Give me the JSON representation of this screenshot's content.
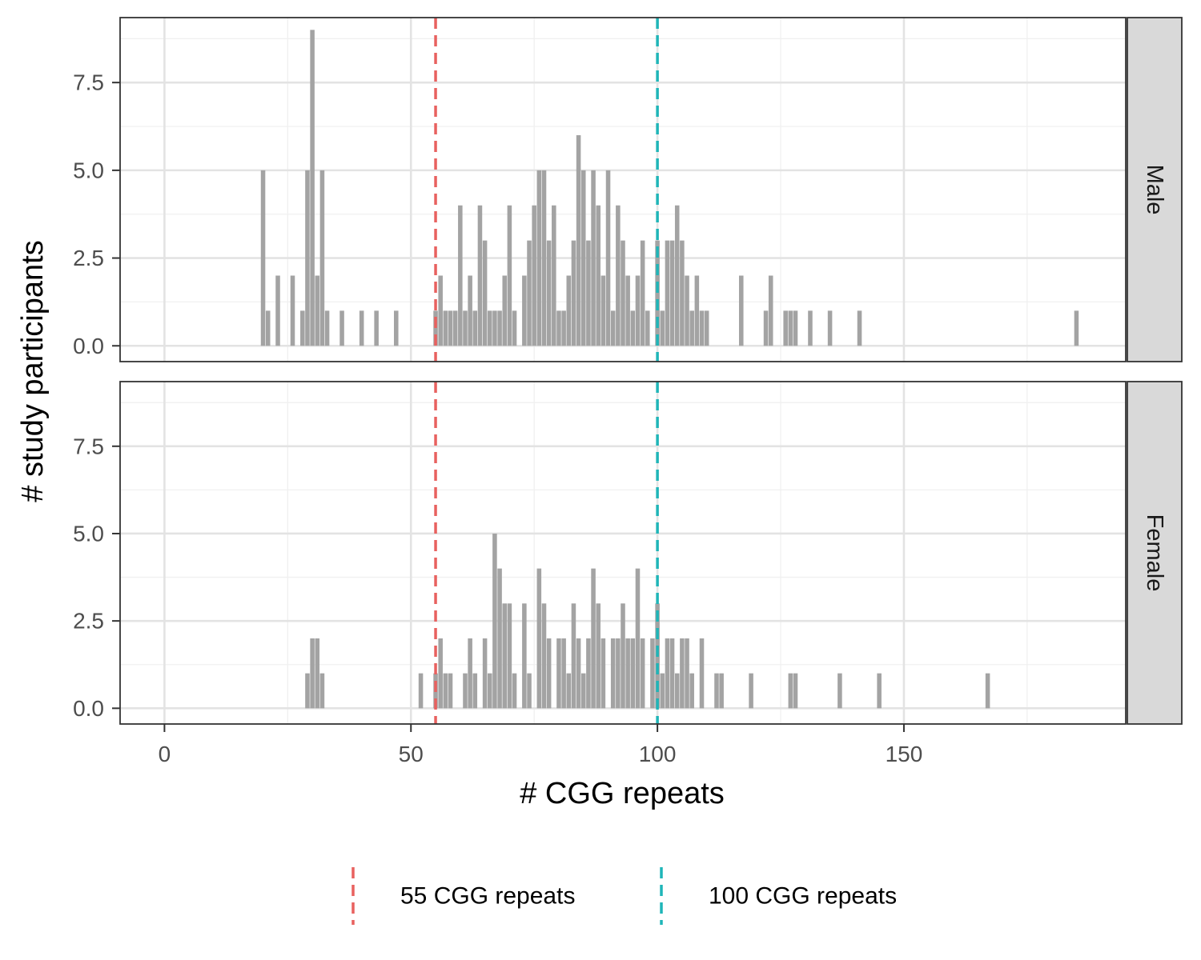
{
  "chart_data": {
    "type": "bar",
    "xlabel": "# CGG repeats",
    "ylabel": "# study participants",
    "xlim": [
      -9,
      195
    ],
    "ylim": [
      -0.45,
      9.35
    ],
    "x_ticks": [
      0,
      50,
      100,
      150
    ],
    "y_ticks": [
      0.0,
      2.5,
      5.0,
      7.5
    ],
    "y_tick_labels": [
      "0.0",
      "2.5",
      "5.0",
      "7.5"
    ],
    "bar_color": "#a3a3a3",
    "grid": true,
    "legend_position": "bottom",
    "reference_lines": [
      {
        "x": 55,
        "label": "55 CGG repeats",
        "color": "#e8615f",
        "style": "dashed"
      },
      {
        "x": 100,
        "label": "100 CGG repeats",
        "color": "#1fb5b8",
        "style": "dashed"
      }
    ],
    "facets": [
      {
        "strip_label": "Male",
        "series": [
          {
            "x": 20,
            "y": 5
          },
          {
            "x": 21,
            "y": 1
          },
          {
            "x": 23,
            "y": 2
          },
          {
            "x": 26,
            "y": 2
          },
          {
            "x": 28,
            "y": 1
          },
          {
            "x": 29,
            "y": 5
          },
          {
            "x": 30,
            "y": 9
          },
          {
            "x": 31,
            "y": 2
          },
          {
            "x": 32,
            "y": 5
          },
          {
            "x": 33,
            "y": 1
          },
          {
            "x": 36,
            "y": 1
          },
          {
            "x": 40,
            "y": 1
          },
          {
            "x": 43,
            "y": 1
          },
          {
            "x": 47,
            "y": 1
          },
          {
            "x": 55,
            "y": 1
          },
          {
            "x": 56,
            "y": 2
          },
          {
            "x": 57,
            "y": 1
          },
          {
            "x": 58,
            "y": 1
          },
          {
            "x": 59,
            "y": 1
          },
          {
            "x": 60,
            "y": 4
          },
          {
            "x": 61,
            "y": 1
          },
          {
            "x": 62,
            "y": 2
          },
          {
            "x": 63,
            "y": 1
          },
          {
            "x": 64,
            "y": 4
          },
          {
            "x": 65,
            "y": 3
          },
          {
            "x": 66,
            "y": 1
          },
          {
            "x": 67,
            "y": 1
          },
          {
            "x": 68,
            "y": 1
          },
          {
            "x": 69,
            "y": 2
          },
          {
            "x": 70,
            "y": 4
          },
          {
            "x": 71,
            "y": 1
          },
          {
            "x": 73,
            "y": 2
          },
          {
            "x": 74,
            "y": 3
          },
          {
            "x": 75,
            "y": 4
          },
          {
            "x": 76,
            "y": 5
          },
          {
            "x": 77,
            "y": 5
          },
          {
            "x": 78,
            "y": 3
          },
          {
            "x": 79,
            "y": 4
          },
          {
            "x": 80,
            "y": 1
          },
          {
            "x": 81,
            "y": 1
          },
          {
            "x": 82,
            "y": 2
          },
          {
            "x": 83,
            "y": 3
          },
          {
            "x": 84,
            "y": 6
          },
          {
            "x": 85,
            "y": 5
          },
          {
            "x": 86,
            "y": 3
          },
          {
            "x": 87,
            "y": 5
          },
          {
            "x": 88,
            "y": 4
          },
          {
            "x": 89,
            "y": 2
          },
          {
            "x": 90,
            "y": 5
          },
          {
            "x": 91,
            "y": 1
          },
          {
            "x": 92,
            "y": 4
          },
          {
            "x": 93,
            "y": 3
          },
          {
            "x": 94,
            "y": 2
          },
          {
            "x": 95,
            "y": 1
          },
          {
            "x": 96,
            "y": 2
          },
          {
            "x": 97,
            "y": 3
          },
          {
            "x": 98,
            "y": 1
          },
          {
            "x": 100,
            "y": 3
          },
          {
            "x": 101,
            "y": 1
          },
          {
            "x": 102,
            "y": 3
          },
          {
            "x": 103,
            "y": 3
          },
          {
            "x": 104,
            "y": 4
          },
          {
            "x": 105,
            "y": 3
          },
          {
            "x": 106,
            "y": 2
          },
          {
            "x": 107,
            "y": 1
          },
          {
            "x": 108,
            "y": 2
          },
          {
            "x": 109,
            "y": 1
          },
          {
            "x": 110,
            "y": 1
          },
          {
            "x": 117,
            "y": 2
          },
          {
            "x": 122,
            "y": 1
          },
          {
            "x": 123,
            "y": 2
          },
          {
            "x": 126,
            "y": 1
          },
          {
            "x": 127,
            "y": 1
          },
          {
            "x": 128,
            "y": 1
          },
          {
            "x": 131,
            "y": 1
          },
          {
            "x": 135,
            "y": 1
          },
          {
            "x": 141,
            "y": 1
          },
          {
            "x": 185,
            "y": 1
          }
        ]
      },
      {
        "strip_label": "Female",
        "series": [
          {
            "x": 29,
            "y": 1
          },
          {
            "x": 30,
            "y": 2
          },
          {
            "x": 31,
            "y": 2
          },
          {
            "x": 32,
            "y": 1
          },
          {
            "x": 52,
            "y": 1
          },
          {
            "x": 55,
            "y": 1
          },
          {
            "x": 56,
            "y": 2
          },
          {
            "x": 57,
            "y": 1
          },
          {
            "x": 58,
            "y": 1
          },
          {
            "x": 61,
            "y": 1
          },
          {
            "x": 62,
            "y": 2
          },
          {
            "x": 63,
            "y": 1
          },
          {
            "x": 65,
            "y": 2
          },
          {
            "x": 66,
            "y": 1
          },
          {
            "x": 67,
            "y": 5
          },
          {
            "x": 68,
            "y": 4
          },
          {
            "x": 69,
            "y": 3
          },
          {
            "x": 70,
            "y": 3
          },
          {
            "x": 71,
            "y": 1
          },
          {
            "x": 73,
            "y": 3
          },
          {
            "x": 74,
            "y": 1
          },
          {
            "x": 76,
            "y": 4
          },
          {
            "x": 77,
            "y": 3
          },
          {
            "x": 78,
            "y": 2
          },
          {
            "x": 80,
            "y": 2
          },
          {
            "x": 81,
            "y": 2
          },
          {
            "x": 82,
            "y": 1
          },
          {
            "x": 83,
            "y": 3
          },
          {
            "x": 84,
            "y": 2
          },
          {
            "x": 85,
            "y": 1
          },
          {
            "x": 86,
            "y": 2
          },
          {
            "x": 87,
            "y": 4
          },
          {
            "x": 88,
            "y": 3
          },
          {
            "x": 89,
            "y": 2
          },
          {
            "x": 91,
            "y": 2
          },
          {
            "x": 92,
            "y": 2
          },
          {
            "x": 93,
            "y": 3
          },
          {
            "x": 94,
            "y": 2
          },
          {
            "x": 95,
            "y": 2
          },
          {
            "x": 96,
            "y": 4
          },
          {
            "x": 97,
            "y": 2
          },
          {
            "x": 99,
            "y": 2
          },
          {
            "x": 100,
            "y": 3
          },
          {
            "x": 101,
            "y": 1
          },
          {
            "x": 102,
            "y": 2
          },
          {
            "x": 103,
            "y": 2
          },
          {
            "x": 104,
            "y": 1
          },
          {
            "x": 105,
            "y": 2
          },
          {
            "x": 106,
            "y": 2
          },
          {
            "x": 107,
            "y": 1
          },
          {
            "x": 109,
            "y": 2
          },
          {
            "x": 112,
            "y": 1
          },
          {
            "x": 113,
            "y": 1
          },
          {
            "x": 119,
            "y": 1
          },
          {
            "x": 127,
            "y": 1
          },
          {
            "x": 128,
            "y": 1
          },
          {
            "x": 137,
            "y": 1
          },
          {
            "x": 145,
            "y": 1
          },
          {
            "x": 167,
            "y": 1
          }
        ]
      }
    ]
  }
}
